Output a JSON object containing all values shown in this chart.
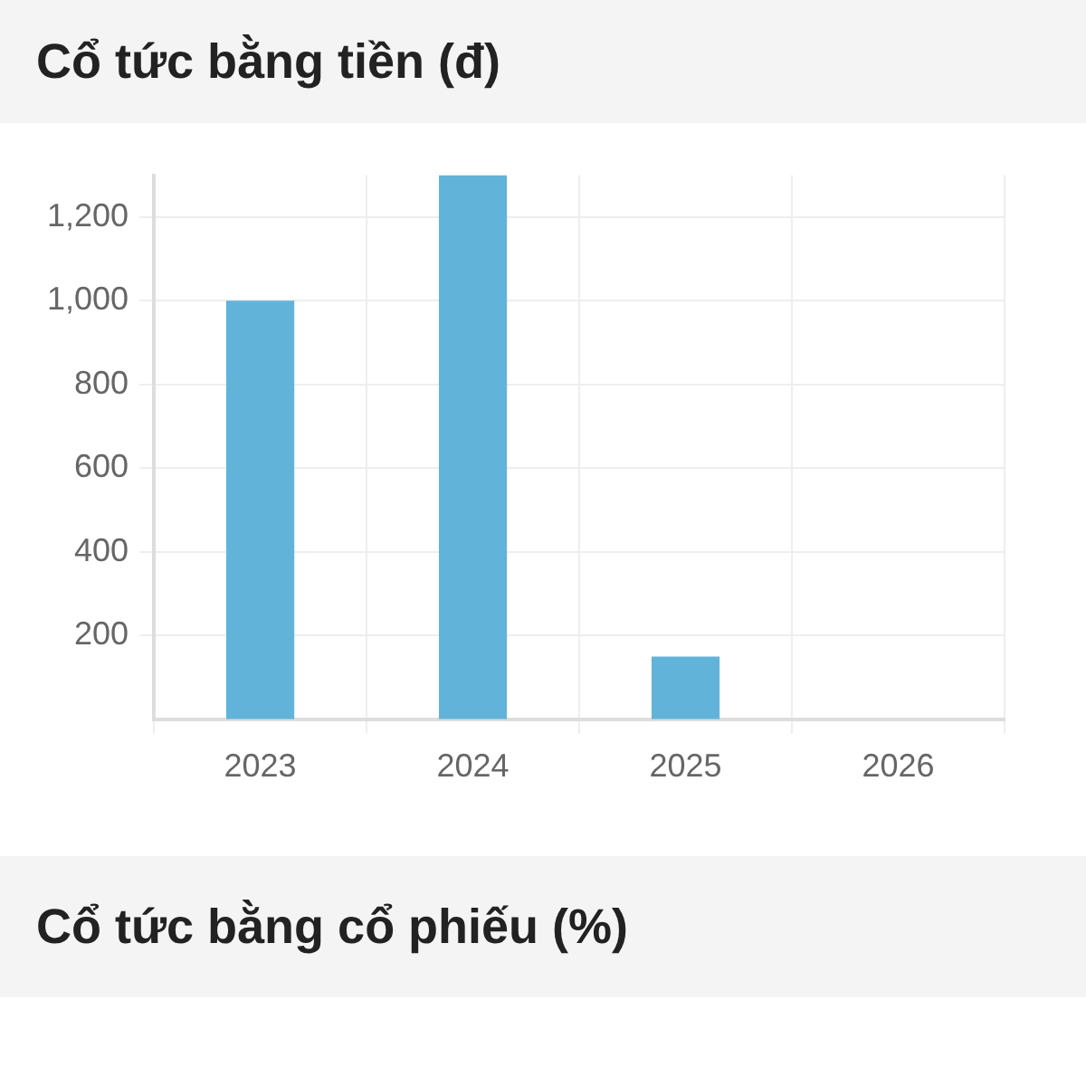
{
  "chart_data": {
    "type": "bar",
    "title": "Cổ tức bằng tiền (đ)",
    "categories": [
      "2023",
      "2024",
      "2025",
      "2026"
    ],
    "values": [
      1000,
      1300,
      150,
      0
    ],
    "color": "#62b3d9",
    "ylim": [
      0,
      1300
    ],
    "yticks": [
      200,
      400,
      600,
      800,
      {
        "value": 1000,
        "label": "1,000"
      },
      {
        "value": 1200,
        "label": "1,200"
      }
    ],
    "grid": true,
    "legend": false,
    "annotations": [
      "Cổ tức bằng cổ phiếu (%)"
    ]
  }
}
